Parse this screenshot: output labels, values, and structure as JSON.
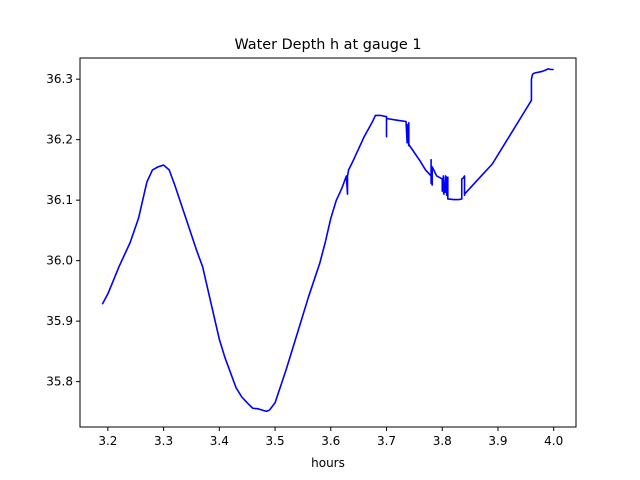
{
  "chart_data": {
    "type": "line",
    "title": "Water Depth h at gauge 1",
    "xlabel": "hours",
    "ylabel": "",
    "xlim": [
      3.15,
      4.04
    ],
    "ylim": [
      35.725,
      36.335
    ],
    "xticks": [
      3.2,
      3.3,
      3.4,
      3.5,
      3.6,
      3.7,
      3.8,
      3.9,
      4.0
    ],
    "xtick_labels": [
      "3.2",
      "3.3",
      "3.4",
      "3.5",
      "3.6",
      "3.7",
      "3.8",
      "3.9",
      "4.0"
    ],
    "yticks": [
      35.8,
      35.9,
      36.0,
      36.1,
      36.2,
      36.3
    ],
    "ytick_labels": [
      "35.8",
      "35.9",
      "36.0",
      "36.1",
      "36.2",
      "36.3"
    ],
    "grid": false,
    "series": [
      {
        "color": "#0000ff",
        "x": [
          3.19,
          3.2,
          3.22,
          3.24,
          3.255,
          3.27,
          3.28,
          3.29,
          3.3,
          3.31,
          3.32,
          3.34,
          3.36,
          3.37,
          3.38,
          3.4,
          3.41,
          3.43,
          3.44,
          3.45,
          3.46,
          3.47,
          3.48,
          3.485,
          3.49,
          3.5,
          3.52,
          3.54,
          3.56,
          3.58,
          3.59,
          3.6,
          3.61,
          3.62,
          3.628,
          3.63,
          3.63,
          3.632,
          3.64,
          3.66,
          3.675,
          3.68,
          3.69,
          3.7,
          3.7,
          3.7,
          3.7,
          3.72,
          3.735,
          3.737,
          3.737,
          3.74,
          3.74,
          3.74,
          3.76,
          3.77,
          3.78,
          3.78,
          3.78,
          3.78,
          3.782,
          3.782,
          3.79,
          3.8,
          3.8,
          3.802,
          3.802,
          3.803,
          3.806,
          3.806,
          3.808,
          3.808,
          3.81,
          3.81,
          3.81,
          3.82,
          3.83,
          3.835,
          3.835,
          3.838,
          3.84,
          3.84,
          3.84,
          3.84,
          3.85,
          3.87,
          3.89,
          3.91,
          3.93,
          3.94,
          3.96,
          3.96,
          3.962,
          3.965,
          3.97,
          3.975,
          3.98,
          3.985,
          3.99,
          3.995,
          4.0
        ],
        "y": [
          35.928,
          35.945,
          35.99,
          36.03,
          36.07,
          36.13,
          36.15,
          36.155,
          36.158,
          36.15,
          36.125,
          36.07,
          36.015,
          35.99,
          35.95,
          35.87,
          35.84,
          35.79,
          35.775,
          35.765,
          35.756,
          35.755,
          35.752,
          35.751,
          35.753,
          35.765,
          35.82,
          35.88,
          35.94,
          35.995,
          36.03,
          36.07,
          36.1,
          36.12,
          36.14,
          36.11,
          36.14,
          36.15,
          36.165,
          36.205,
          36.23,
          36.24,
          36.24,
          36.238,
          36.205,
          36.238,
          36.235,
          36.232,
          36.23,
          36.195,
          36.225,
          36.19,
          36.228,
          36.192,
          36.165,
          36.15,
          36.14,
          36.128,
          36.167,
          36.13,
          36.125,
          36.155,
          36.14,
          36.135,
          36.115,
          36.14,
          36.115,
          36.11,
          36.14,
          36.113,
          36.138,
          36.108,
          36.138,
          36.104,
          36.102,
          36.101,
          36.101,
          36.102,
          36.135,
          36.137,
          36.14,
          36.11,
          36.108,
          36.11,
          36.12,
          36.14,
          36.16,
          36.19,
          36.22,
          36.235,
          36.265,
          36.3,
          36.308,
          36.31,
          36.311,
          36.312,
          36.313,
          36.315,
          36.317,
          36.316,
          36.316
        ]
      }
    ]
  }
}
